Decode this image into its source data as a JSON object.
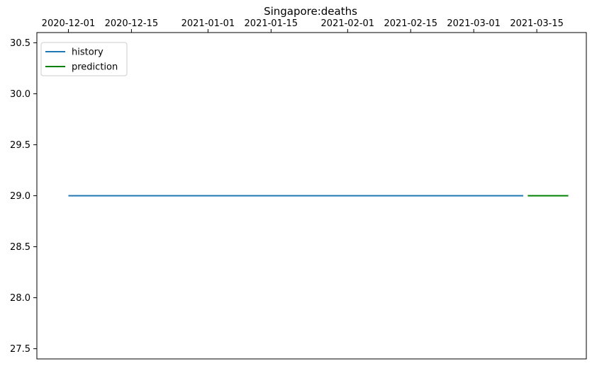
{
  "chart_data": {
    "type": "line",
    "title": "Singapore:deaths",
    "xlabel": "",
    "ylabel": "",
    "x_axis_position": "top",
    "x_ticks": [
      "2020-12-01",
      "2020-12-15",
      "2021-01-01",
      "2021-01-15",
      "2021-02-01",
      "2021-02-15",
      "2021-03-01",
      "2021-03-15"
    ],
    "y_ticks": [
      27.5,
      28.0,
      28.5,
      29.0,
      29.5,
      30.0,
      30.5
    ],
    "ylim": [
      27.4,
      30.6
    ],
    "xlim": [
      "2020-11-24",
      "2021-03-26"
    ],
    "grid": false,
    "legend_position": "top-left",
    "series": [
      {
        "name": "history",
        "color": "#1f77b4",
        "x": [
          "2020-12-01",
          "2021-03-12"
        ],
        "y": [
          29,
          29
        ]
      },
      {
        "name": "prediction",
        "color": "#008000",
        "x": [
          "2021-03-13",
          "2021-03-22"
        ],
        "y": [
          29,
          29
        ]
      }
    ]
  }
}
